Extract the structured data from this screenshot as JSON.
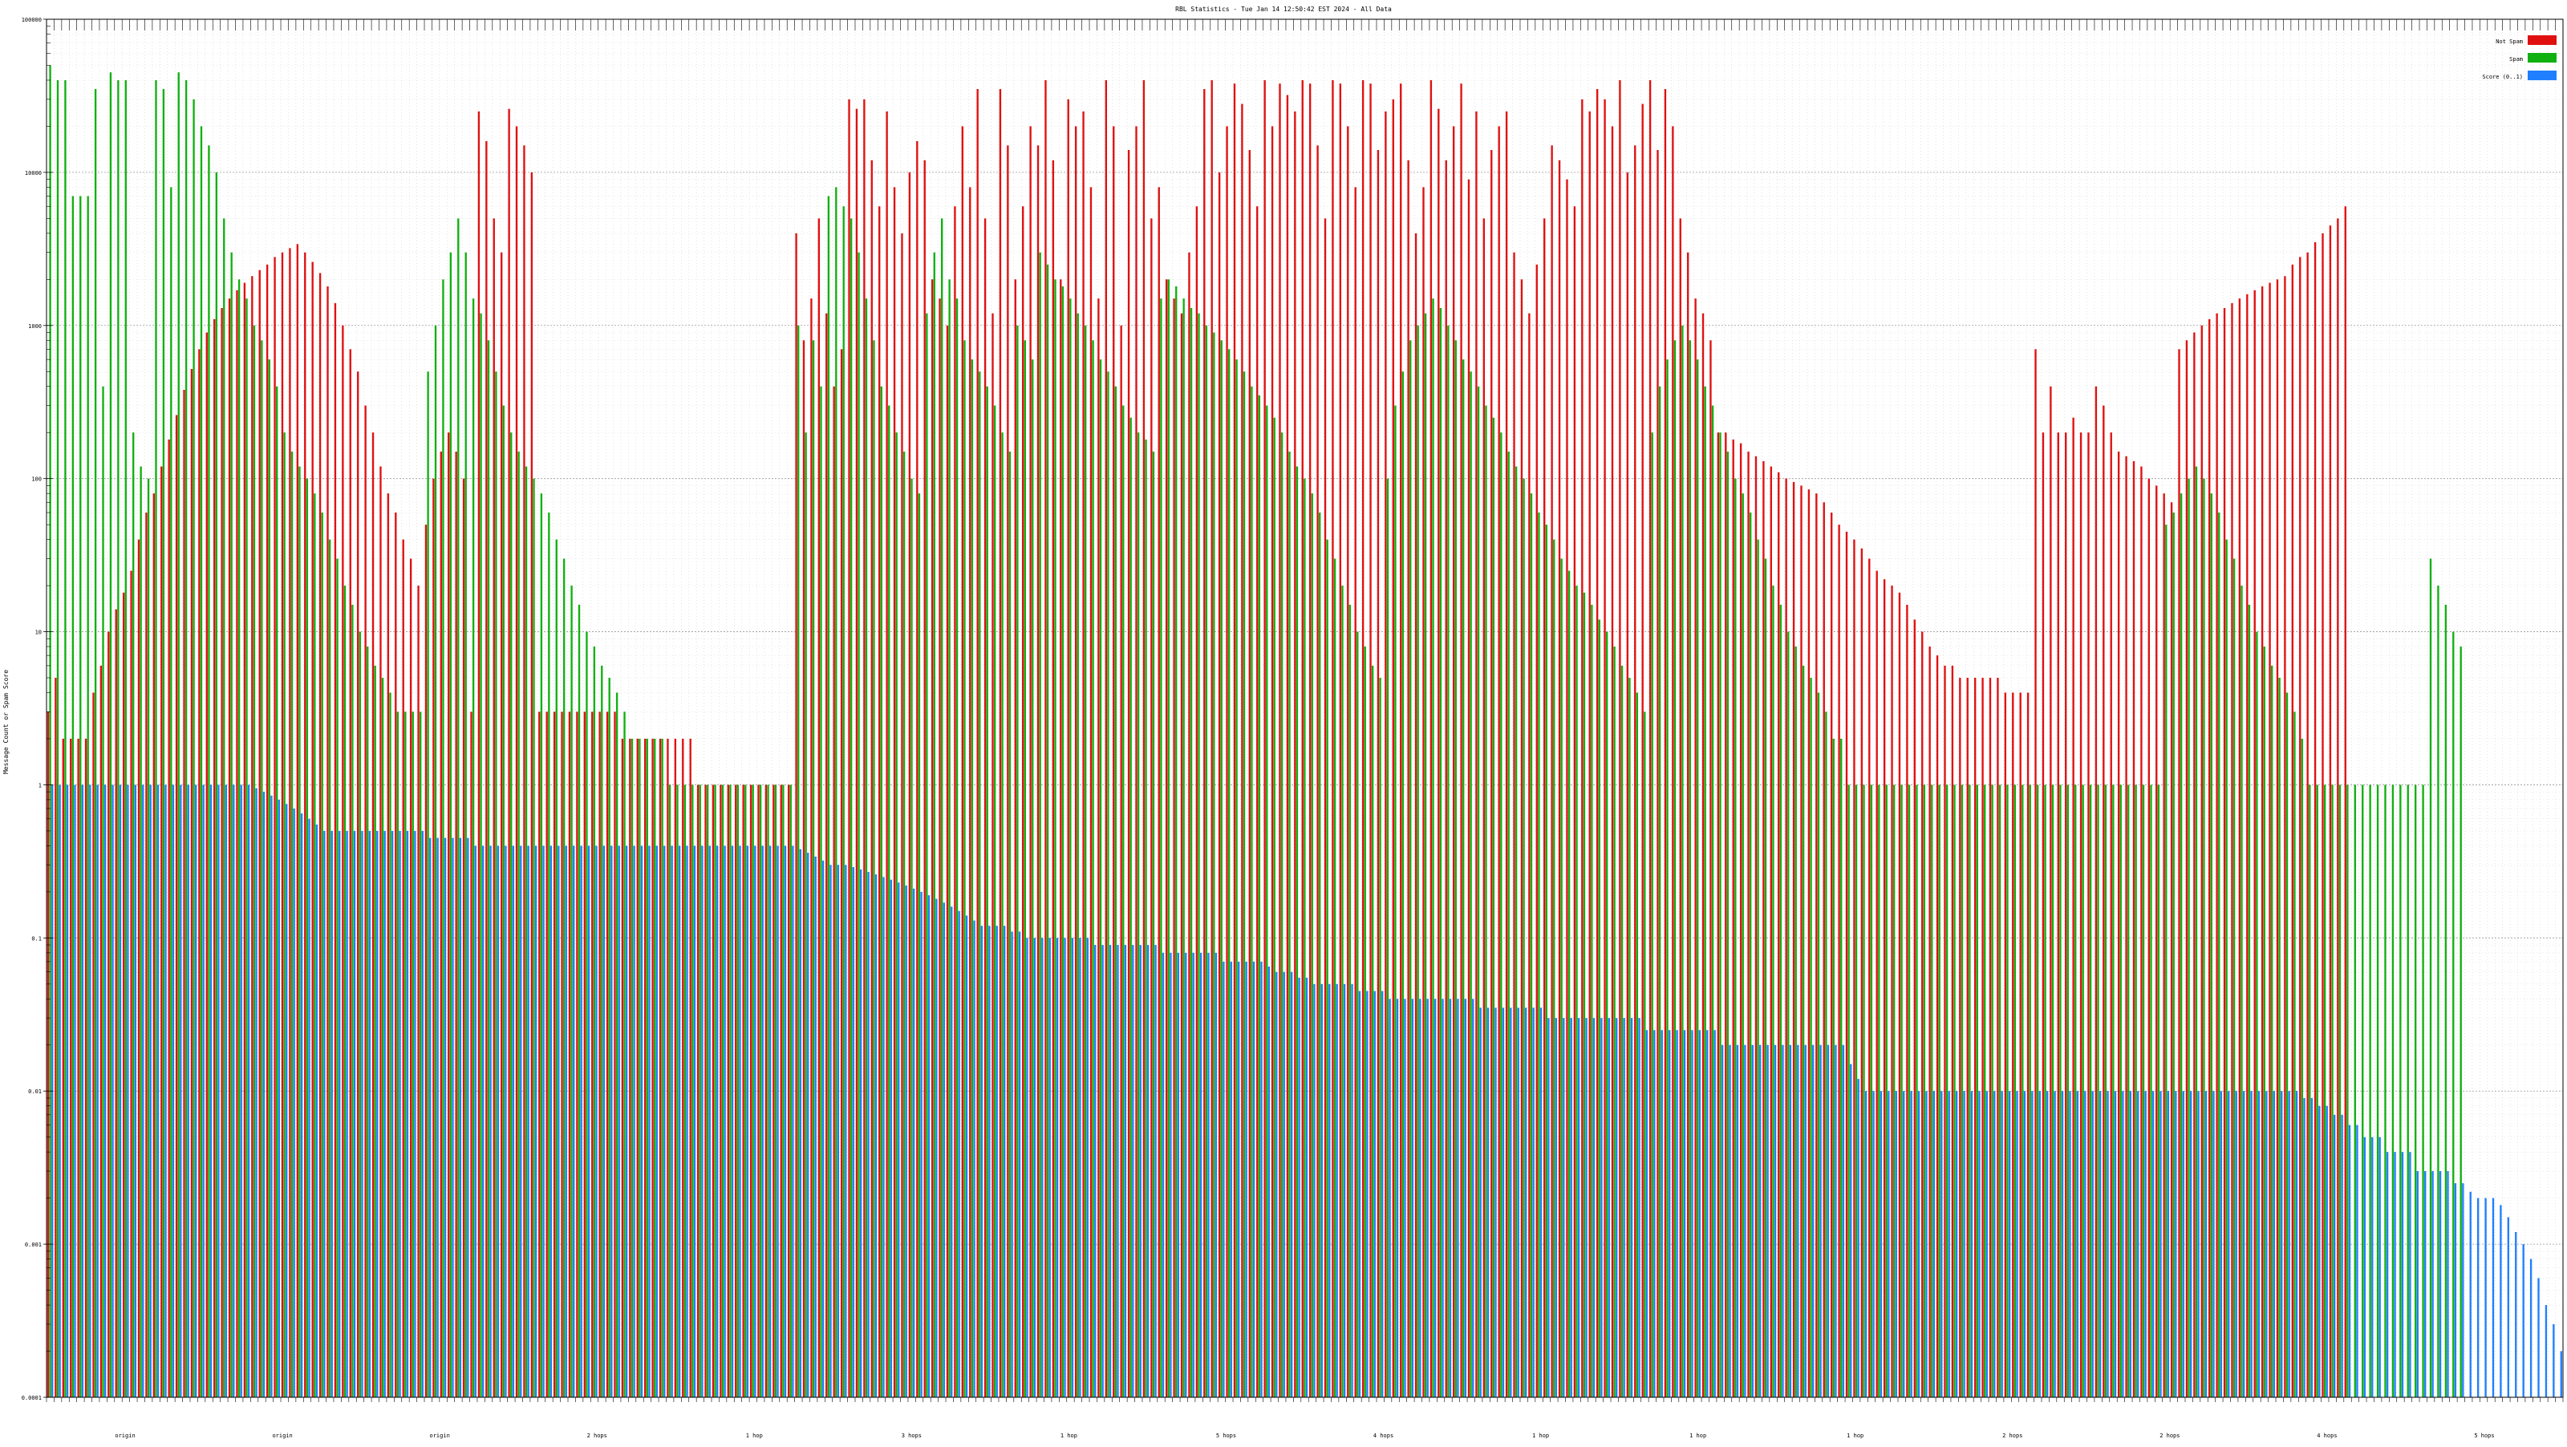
{
  "chart_data": {
    "type": "bar",
    "title": "RBL Statistics - Tue Jan 14 12:50:42 EST 2024 - All Data",
    "ylabel": "Message Count or Spam Score",
    "xlabel": "",
    "scale": "log",
    "ylim": [
      0.0001,
      100000
    ],
    "yticks": [
      "0.0001",
      "0.001",
      "0.01",
      "0.1",
      "1",
      "10",
      "100",
      "1000",
      "10000",
      "100000"
    ],
    "grid": true,
    "legend_position": "top-right",
    "x_tick_labels_note": "Per-category labels along the x axis are illegible at this resolution (long rotated/stacked lists); only a few group markers are readable.",
    "x_group_labels": [
      "origin",
      "origin",
      "origin",
      "2 hops",
      "1 hop",
      "3 hops",
      "1 hop",
      "5 hops",
      "4 hops",
      "1 hop",
      "1 hop",
      "1 hop",
      "2 hops",
      "2 hops",
      "4 hops",
      "5 hops"
    ],
    "series": [
      {
        "name": "Not Spam",
        "color": "#e01010",
        "values": [
          3,
          5,
          2,
          2,
          2,
          2,
          4,
          6,
          10,
          14,
          18,
          25,
          40,
          60,
          80,
          120,
          180,
          260,
          380,
          520,
          700,
          900,
          1100,
          1300,
          1500,
          1700,
          1900,
          2100,
          2300,
          2500,
          2800,
          3000,
          3200,
          3400,
          3000,
          2600,
          2200,
          1800,
          1400,
          1000,
          700,
          500,
          300,
          200,
          120,
          80,
          60,
          40,
          30,
          20,
          50,
          100,
          150,
          200,
          150,
          100,
          3,
          25000,
          16000,
          5000,
          3000,
          26000,
          20000,
          15000,
          10000,
          3,
          3,
          3,
          3,
          3,
          3,
          3,
          3,
          3,
          3,
          3,
          2,
          2,
          2,
          2,
          2,
          2,
          2,
          2,
          2,
          2,
          1,
          1,
          1,
          1,
          1,
          1,
          1,
          1,
          1,
          1,
          1,
          1,
          1,
          4000,
          800,
          1500,
          5000,
          1200,
          400,
          700,
          30000,
          26000,
          30000,
          12000,
          6000,
          25000,
          8000,
          4000,
          10000,
          16000,
          12000,
          2000,
          1500,
          1000,
          6000,
          20000,
          8000,
          35000,
          5000,
          1200,
          35000,
          15000,
          2000,
          6000,
          20000,
          15000,
          40000,
          12000,
          2000,
          30000,
          20000,
          25000,
          8000,
          1500,
          40000,
          20000,
          1000,
          14000,
          20000,
          40000,
          5000,
          8000,
          2000,
          1500,
          1200,
          3000,
          6000,
          35000,
          40000,
          10000,
          20000,
          38000,
          28000,
          14000,
          6000,
          40000,
          20000,
          38000,
          32000,
          25000,
          40000,
          38000,
          15000,
          5000,
          40000,
          38000,
          20000,
          8000,
          40000,
          38000,
          14000,
          25000,
          30000,
          38000,
          12000,
          4000,
          8000,
          40000,
          26000,
          12000,
          20000,
          38000,
          9000,
          25000,
          5000,
          14000,
          20000,
          25000,
          3000,
          2000,
          1200,
          2500,
          5000,
          15000,
          12000,
          9000,
          6000,
          30000,
          25000,
          35000,
          30000,
          20000,
          40000,
          10000,
          15000,
          28000,
          40000,
          14000,
          35000,
          20000,
          5000,
          3000,
          1500,
          1200,
          800,
          200,
          200,
          180,
          170,
          150,
          140,
          130,
          120,
          110,
          100,
          95,
          90,
          85,
          80,
          70,
          60,
          50,
          45,
          40,
          35,
          30,
          25,
          22,
          20,
          18,
          15,
          12,
          10,
          8,
          7,
          6,
          6,
          5,
          5,
          5,
          5,
          5,
          5,
          4,
          4,
          4,
          4,
          700,
          200,
          400,
          200,
          200,
          250,
          200,
          200,
          400,
          300,
          200,
          150,
          140,
          130,
          120,
          100,
          90,
          80,
          70,
          700,
          800,
          900,
          1000,
          1100,
          1200,
          1300,
          1400,
          1500,
          1600,
          1700,
          1800,
          1900,
          2000,
          2100,
          2500,
          2800,
          3000,
          3500,
          4000,
          4500,
          5000,
          6000
        ]
      },
      {
        "name": "Spam",
        "color": "#10b010",
        "values": [
          50000,
          40000,
          40000,
          7000,
          7000,
          7000,
          35000,
          400,
          45000,
          40000,
          40000,
          200,
          120,
          100,
          40000,
          35000,
          8000,
          45000,
          40000,
          30000,
          20000,
          15000,
          10000,
          5000,
          3000,
          2000,
          1500,
          1000,
          800,
          600,
          400,
          200,
          150,
          120,
          100,
          80,
          60,
          40,
          30,
          20,
          15,
          10,
          8,
          6,
          5,
          4,
          3,
          3,
          3,
          3,
          500,
          1000,
          2000,
          3000,
          5000,
          3000,
          1500,
          1200,
          800,
          500,
          300,
          200,
          150,
          120,
          100,
          80,
          60,
          40,
          30,
          20,
          15,
          10,
          8,
          6,
          5,
          4,
          3,
          2,
          2,
          2,
          2,
          2,
          1,
          1,
          1,
          1,
          1,
          1,
          1,
          1,
          1,
          1,
          1,
          1,
          1,
          1,
          1,
          1,
          1,
          1000,
          200,
          800,
          400,
          7000,
          8000,
          6000,
          5000,
          3000,
          1500,
          800,
          400,
          300,
          200,
          150,
          100,
          80,
          1200,
          3000,
          5000,
          2000,
          1500,
          800,
          600,
          500,
          400,
          300,
          200,
          150,
          1000,
          800,
          600,
          3000,
          2500,
          2000,
          1800,
          1500,
          1200,
          1000,
          800,
          600,
          500,
          400,
          300,
          250,
          200,
          180,
          150,
          1500,
          2000,
          1800,
          1500,
          1300,
          1200,
          1000,
          900,
          800,
          700,
          600,
          500,
          400,
          350,
          300,
          250,
          200,
          150,
          120,
          100,
          80,
          60,
          40,
          30,
          20,
          15,
          10,
          8,
          6,
          5,
          100,
          300,
          500,
          800,
          1000,
          1200,
          1500,
          1300,
          1000,
          800,
          600,
          500,
          400,
          300,
          250,
          200,
          150,
          120,
          100,
          80,
          60,
          50,
          40,
          30,
          25,
          20,
          18,
          15,
          12,
          10,
          8,
          6,
          5,
          4,
          3,
          200,
          400,
          600,
          800,
          1000,
          800,
          600,
          400,
          300,
          200,
          150,
          100,
          80,
          60,
          40,
          30,
          20,
          15,
          10,
          8,
          6,
          5,
          4,
          3,
          2,
          2,
          1,
          1,
          1,
          1,
          1,
          1,
          1,
          1,
          1,
          1,
          1,
          1,
          1,
          1,
          1,
          1,
          1,
          1,
          1,
          1,
          1,
          1,
          1,
          1,
          1,
          1,
          1,
          1,
          1,
          1,
          1,
          1,
          1,
          1,
          1,
          1,
          1,
          1,
          1,
          1,
          1,
          1,
          50,
          60,
          80,
          100,
          120,
          100,
          80,
          60,
          40,
          30,
          20,
          15,
          10,
          8,
          6,
          5,
          4,
          3,
          2,
          1,
          1,
          1,
          1,
          1,
          1,
          1,
          1,
          1,
          1,
          1,
          1,
          1,
          1,
          1,
          1,
          30,
          20,
          15,
          10,
          8
        ]
      },
      {
        "name": "Score (0..1)",
        "color": "#1f7fff",
        "values": [
          1,
          1,
          1,
          1,
          1,
          1,
          1,
          1,
          1,
          1,
          1,
          1,
          1,
          1,
          1,
          1,
          1,
          1,
          1,
          1,
          1,
          1,
          1,
          1,
          1,
          1,
          1,
          0.95,
          0.9,
          0.85,
          0.8,
          0.75,
          0.7,
          0.65,
          0.6,
          0.55,
          0.5,
          0.5,
          0.5,
          0.5,
          0.5,
          0.5,
          0.5,
          0.5,
          0.5,
          0.5,
          0.5,
          0.5,
          0.5,
          0.5,
          0.45,
          0.45,
          0.45,
          0.45,
          0.45,
          0.45,
          0.4,
          0.4,
          0.4,
          0.4,
          0.4,
          0.4,
          0.4,
          0.4,
          0.4,
          0.4,
          0.4,
          0.4,
          0.4,
          0.4,
          0.4,
          0.4,
          0.4,
          0.4,
          0.4,
          0.4,
          0.4,
          0.4,
          0.4,
          0.4,
          0.4,
          0.4,
          0.4,
          0.4,
          0.4,
          0.4,
          0.4,
          0.4,
          0.4,
          0.4,
          0.4,
          0.4,
          0.4,
          0.4,
          0.4,
          0.4,
          0.4,
          0.4,
          0.4,
          0.38,
          0.36,
          0.34,
          0.32,
          0.3,
          0.3,
          0.3,
          0.29,
          0.28,
          0.27,
          0.26,
          0.25,
          0.24,
          0.23,
          0.22,
          0.21,
          0.2,
          0.19,
          0.18,
          0.17,
          0.16,
          0.15,
          0.14,
          0.13,
          0.12,
          0.12,
          0.12,
          0.12,
          0.11,
          0.11,
          0.1,
          0.1,
          0.1,
          0.1,
          0.1,
          0.1,
          0.1,
          0.1,
          0.1,
          0.09,
          0.09,
          0.09,
          0.09,
          0.09,
          0.09,
          0.09,
          0.09,
          0.09,
          0.08,
          0.08,
          0.08,
          0.08,
          0.08,
          0.08,
          0.08,
          0.08,
          0.07,
          0.07,
          0.07,
          0.07,
          0.07,
          0.07,
          0.065,
          0.06,
          0.06,
          0.06,
          0.055,
          0.055,
          0.05,
          0.05,
          0.05,
          0.05,
          0.05,
          0.05,
          0.045,
          0.045,
          0.045,
          0.045,
          0.04,
          0.04,
          0.04,
          0.04,
          0.04,
          0.04,
          0.04,
          0.04,
          0.04,
          0.04,
          0.04,
          0.04,
          0.035,
          0.035,
          0.035,
          0.035,
          0.035,
          0.035,
          0.035,
          0.035,
          0.035,
          0.03,
          0.03,
          0.03,
          0.03,
          0.03,
          0.03,
          0.03,
          0.03,
          0.03,
          0.03,
          0.03,
          0.03,
          0.03,
          0.025,
          0.025,
          0.025,
          0.025,
          0.025,
          0.025,
          0.025,
          0.025,
          0.025,
          0.025,
          0.02,
          0.02,
          0.02,
          0.02,
          0.02,
          0.02,
          0.02,
          0.02,
          0.02,
          0.02,
          0.02,
          0.02,
          0.02,
          0.02,
          0.02,
          0.02,
          0.02,
          0.015,
          0.012,
          0.01,
          0.01,
          0.01,
          0.01,
          0.01,
          0.01,
          0.01,
          0.01,
          0.01,
          0.01,
          0.01,
          0.01,
          0.01,
          0.01,
          0.01,
          0.01,
          0.01,
          0.01,
          0.01,
          0.01,
          0.01,
          0.01,
          0.01,
          0.01,
          0.01,
          0.01,
          0.01,
          0.01,
          0.01,
          0.01,
          0.01,
          0.01,
          0.01,
          0.01,
          0.01,
          0.01,
          0.01,
          0.01,
          0.01,
          0.01,
          0.01,
          0.01,
          0.01,
          0.01,
          0.01,
          0.01,
          0.01,
          0.01,
          0.01,
          0.01,
          0.01,
          0.01,
          0.01,
          0.01,
          0.01,
          0.01,
          0.01,
          0.01,
          0.009,
          0.009,
          0.008,
          0.008,
          0.007,
          0.007,
          0.006,
          0.006,
          0.005,
          0.005,
          0.005,
          0.004,
          0.004,
          0.004,
          0.004,
          0.003,
          0.003,
          0.003,
          0.003,
          0.003,
          0.0025,
          0.0025,
          0.0022,
          0.002,
          0.002,
          0.002,
          0.0018,
          0.0015,
          0.0012,
          0.001,
          0.0008,
          0.0006,
          0.0004,
          0.0003,
          0.0002
        ]
      }
    ]
  }
}
